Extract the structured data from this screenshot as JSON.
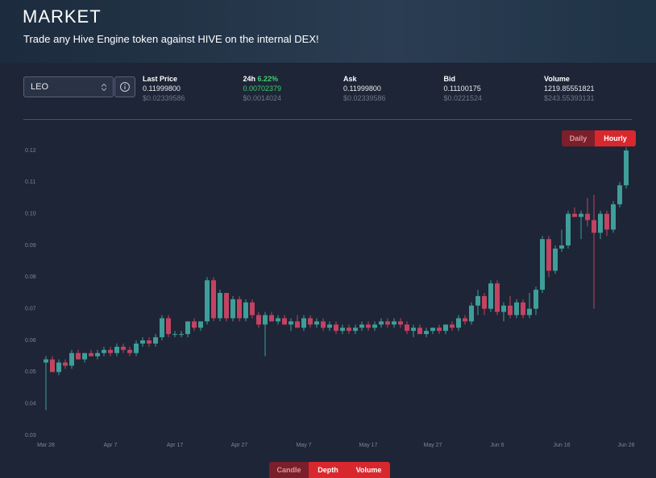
{
  "header": {
    "title": "MARKET",
    "subtitle": "Trade any Hive Engine token against HIVE on the internal DEX!"
  },
  "token": "LEO",
  "stats": [
    {
      "label": "Last Price",
      "value": "0.11999800",
      "sub_value": "$0.02339586"
    },
    {
      "label": "24h",
      "change": "6.22%",
      "value": "0.00702379",
      "sub_value": "$0.0014024"
    },
    {
      "label": "Ask",
      "value": "0.11999800",
      "sub_value": "$0.02339586"
    },
    {
      "label": "Bid",
      "value": "0.11100175",
      "sub_value": "$0.0221524"
    },
    {
      "label": "Volume",
      "value": "1219.85551821",
      "sub_value": "$243.55393131"
    }
  ],
  "period_buttons": [
    "Daily",
    "Hourly"
  ],
  "view_buttons": [
    "Candle",
    "Depth",
    "Volume"
  ],
  "chart_data": {
    "type": "candlestick",
    "categories": [
      "Mar 28",
      null,
      null,
      null,
      null,
      null,
      null,
      null,
      null,
      null,
      "Apr 7",
      null,
      null,
      null,
      null,
      null,
      null,
      null,
      null,
      null,
      "Apr 17",
      null,
      null,
      null,
      null,
      null,
      null,
      null,
      null,
      null,
      "Apr 27",
      null,
      null,
      null,
      null,
      null,
      null,
      null,
      null,
      null,
      "May 7",
      null,
      null,
      null,
      null,
      null,
      null,
      null,
      null,
      null,
      "May 17",
      null,
      null,
      null,
      null,
      null,
      null,
      null,
      null,
      null,
      "May 27",
      null,
      null,
      null,
      null,
      null,
      null,
      null,
      null,
      null,
      "Jun 6",
      null,
      null,
      null,
      null,
      null,
      null,
      null,
      null,
      null,
      "Jun 16",
      null,
      null,
      null,
      null,
      null,
      null,
      null,
      null,
      null,
      "Jun 26"
    ],
    "open": [
      0.053,
      0.054,
      0.05,
      0.053,
      0.052,
      0.056,
      0.054,
      0.056,
      0.055,
      0.056,
      0.057,
      0.056,
      0.058,
      0.057,
      0.056,
      0.059,
      0.06,
      0.059,
      0.061,
      0.067,
      0.062,
      0.062,
      0.062,
      0.066,
      0.064,
      0.066,
      0.079,
      0.067,
      0.075,
      0.067,
      0.073,
      0.067,
      0.072,
      0.068,
      0.065,
      0.068,
      0.066,
      0.067,
      0.065,
      0.066,
      0.064,
      0.067,
      0.065,
      0.066,
      0.064,
      0.065,
      0.063,
      0.064,
      0.063,
      0.064,
      0.065,
      0.064,
      0.065,
      0.066,
      0.065,
      0.066,
      0.065,
      0.063,
      0.064,
      0.062,
      0.063,
      0.064,
      0.063,
      0.065,
      0.064,
      0.067,
      0.066,
      0.071,
      0.074,
      0.07,
      0.078,
      0.069,
      0.071,
      0.068,
      0.072,
      0.068,
      0.07,
      0.076,
      0.092,
      0.082,
      0.089,
      0.09,
      0.1,
      0.099,
      0.1,
      0.098,
      0.094,
      0.1,
      0.095,
      0.103,
      0.109
    ],
    "high": [
      0.055,
      0.055,
      0.054,
      0.054,
      0.057,
      0.057,
      0.056,
      0.057,
      0.057,
      0.058,
      0.058,
      0.059,
      0.059,
      0.058,
      0.06,
      0.061,
      0.061,
      0.062,
      0.068,
      0.068,
      0.063,
      0.063,
      0.066,
      0.067,
      0.066,
      0.08,
      0.08,
      0.076,
      0.075,
      0.074,
      0.074,
      0.073,
      0.073,
      0.069,
      0.069,
      0.069,
      0.068,
      0.068,
      0.067,
      0.068,
      0.068,
      0.068,
      0.067,
      0.067,
      0.066,
      0.066,
      0.065,
      0.065,
      0.065,
      0.066,
      0.066,
      0.066,
      0.067,
      0.067,
      0.067,
      0.067,
      0.066,
      0.065,
      0.065,
      0.064,
      0.064,
      0.065,
      0.065,
      0.066,
      0.068,
      0.068,
      0.072,
      0.076,
      0.075,
      0.079,
      0.079,
      0.072,
      0.074,
      0.073,
      0.073,
      0.075,
      0.077,
      0.093,
      0.093,
      0.09,
      0.095,
      0.101,
      0.102,
      0.101,
      0.105,
      0.106,
      0.101,
      0.101,
      0.104,
      0.11,
      0.121
    ],
    "low": [
      0.038,
      0.05,
      0.049,
      0.051,
      0.051,
      0.054,
      0.053,
      0.055,
      0.054,
      0.055,
      0.055,
      0.055,
      0.056,
      0.055,
      0.055,
      0.058,
      0.058,
      0.058,
      0.06,
      0.061,
      0.061,
      0.061,
      0.061,
      0.063,
      0.063,
      0.065,
      0.066,
      0.066,
      0.066,
      0.066,
      0.066,
      0.066,
      0.067,
      0.064,
      0.055,
      0.066,
      0.065,
      0.065,
      0.063,
      0.064,
      0.063,
      0.064,
      0.064,
      0.063,
      0.063,
      0.062,
      0.062,
      0.062,
      0.062,
      0.063,
      0.063,
      0.063,
      0.064,
      0.064,
      0.064,
      0.064,
      0.062,
      0.061,
      0.062,
      0.061,
      0.062,
      0.062,
      0.062,
      0.063,
      0.063,
      0.065,
      0.065,
      0.068,
      0.068,
      0.069,
      0.068,
      0.066,
      0.067,
      0.067,
      0.067,
      0.067,
      0.068,
      0.075,
      0.08,
      0.081,
      0.088,
      0.089,
      0.099,
      0.092,
      0.096,
      0.07,
      0.092,
      0.093,
      0.094,
      0.102,
      0.108
    ],
    "close": [
      0.054,
      0.05,
      0.053,
      0.052,
      0.056,
      0.054,
      0.056,
      0.055,
      0.056,
      0.057,
      0.056,
      0.058,
      0.057,
      0.056,
      0.059,
      0.06,
      0.059,
      0.061,
      0.067,
      0.062,
      0.062,
      0.062,
      0.066,
      0.064,
      0.066,
      0.079,
      0.067,
      0.075,
      0.067,
      0.073,
      0.067,
      0.072,
      0.068,
      0.065,
      0.068,
      0.066,
      0.067,
      0.065,
      0.066,
      0.064,
      0.067,
      0.065,
      0.066,
      0.064,
      0.065,
      0.063,
      0.064,
      0.063,
      0.064,
      0.065,
      0.064,
      0.065,
      0.066,
      0.065,
      0.066,
      0.065,
      0.063,
      0.064,
      0.062,
      0.063,
      0.064,
      0.063,
      0.065,
      0.064,
      0.067,
      0.066,
      0.071,
      0.074,
      0.07,
      0.078,
      0.069,
      0.071,
      0.068,
      0.072,
      0.068,
      0.07,
      0.076,
      0.092,
      0.082,
      0.089,
      0.09,
      0.1,
      0.099,
      0.1,
      0.098,
      0.094,
      0.1,
      0.095,
      0.103,
      0.109,
      0.12
    ],
    "up_color": "#3f9e99",
    "down_color": "#c24362",
    "ylim": [
      0.03,
      0.12
    ],
    "yticks": [
      0.03,
      0.04,
      0.05,
      0.06,
      0.07,
      0.08,
      0.09,
      {
        "value": 0.1,
        "label": "0.10"
      },
      0.11,
      0.12
    ]
  }
}
